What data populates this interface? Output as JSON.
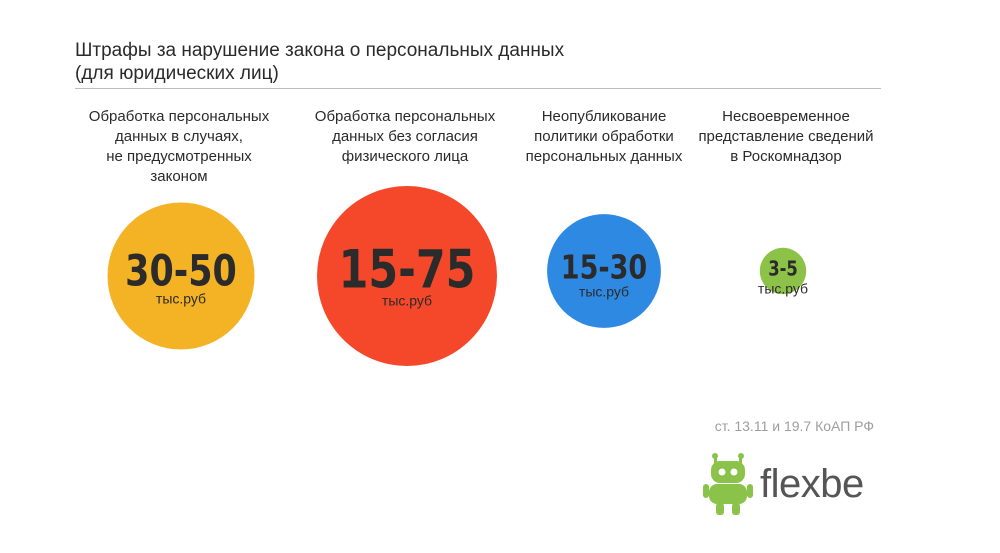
{
  "title": {
    "line1": "Штрафы за нарушение закона о персональных данных",
    "line2": "(для юридических лиц)"
  },
  "chart_data": {
    "type": "bubble",
    "categories": [
      {
        "label_lines": [
          "Обработка персональных",
          "данных в случаях,",
          "не предусмотренных",
          "законом"
        ],
        "value_text": "30-50",
        "min": 30,
        "max": 50,
        "unit": "тыс.руб",
        "color": "#F4B325"
      },
      {
        "label_lines": [
          "Обработка персональных",
          "данных без согласия",
          "физического лица"
        ],
        "value_text": "15-75",
        "min": 15,
        "max": 75,
        "unit": "тыс.руб",
        "color": "#F5482A"
      },
      {
        "label_lines": [
          "Неопубликование",
          "политики обработки",
          "персональных данных"
        ],
        "value_text": "15-30",
        "min": 15,
        "max": 30,
        "unit": "тыс.руб",
        "color": "#2E89E3"
      },
      {
        "label_lines": [
          "Несвоевременное",
          "представление сведений",
          "в Роскомнадзор"
        ],
        "value_text": "3-5",
        "min": 3,
        "max": 5,
        "unit": "тыс.руб",
        "color": "#8DC249"
      }
    ]
  },
  "source": "ст. 13.11 и 19.7 КоАП РФ",
  "logo": {
    "text": "flexbe",
    "icon": "robot-icon",
    "icon_color": "#8BC34A"
  }
}
